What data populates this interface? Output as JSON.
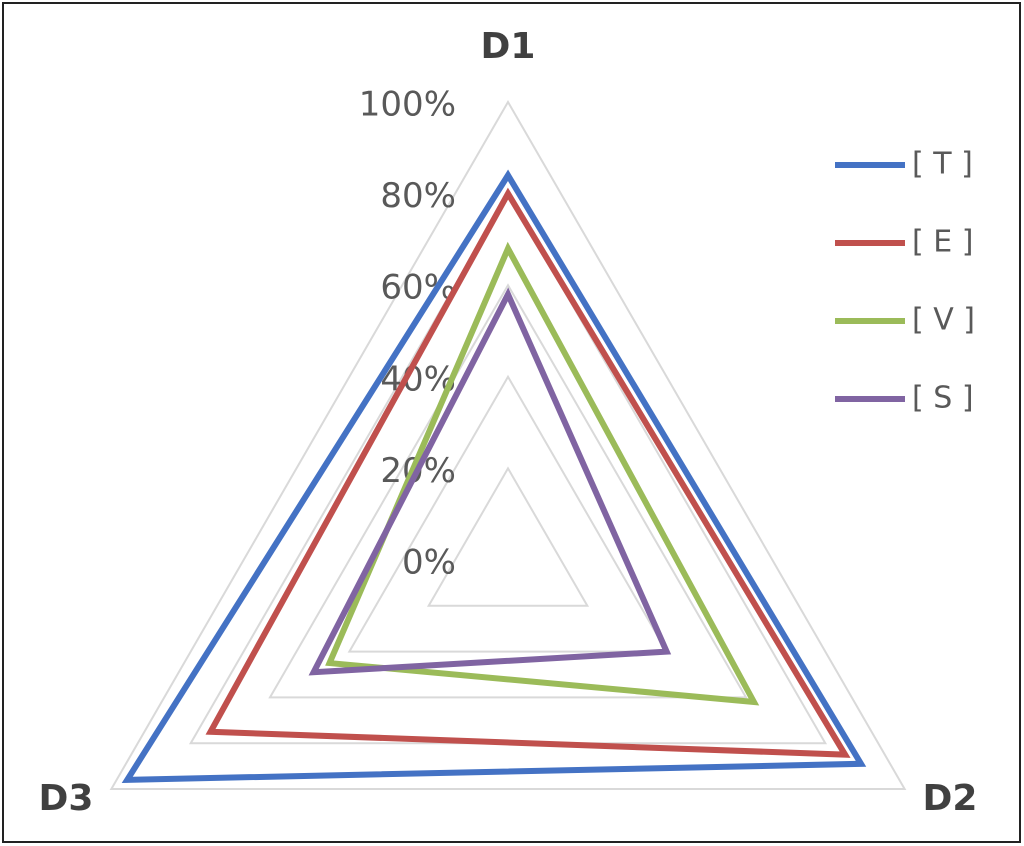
{
  "chart_data": {
    "type": "radar",
    "categories": [
      "D1",
      "D2",
      "D3"
    ],
    "series": [
      {
        "name": "[ T ]",
        "color": "#4472c4",
        "values": [
          84,
          89,
          96
        ]
      },
      {
        "name": "[ E ]",
        "color": "#c0504d",
        "values": [
          80,
          85,
          75
        ]
      },
      {
        "name": "[ V ]",
        "color": "#9bbb59",
        "values": [
          68,
          62,
          45
        ]
      },
      {
        "name": "[ S ]",
        "color": "#8064a2",
        "values": [
          58,
          40,
          49
        ]
      }
    ],
    "ylim": [
      0,
      100
    ],
    "yticks": [
      {
        "value": 0,
        "label": "0%"
      },
      {
        "value": 20,
        "label": "20%"
      },
      {
        "value": 40,
        "label": "40%"
      },
      {
        "value": 60,
        "label": "60%"
      },
      {
        "value": 80,
        "label": "80%"
      },
      {
        "value": 100,
        "label": "100%"
      }
    ],
    "grid": true,
    "legend": "right"
  }
}
